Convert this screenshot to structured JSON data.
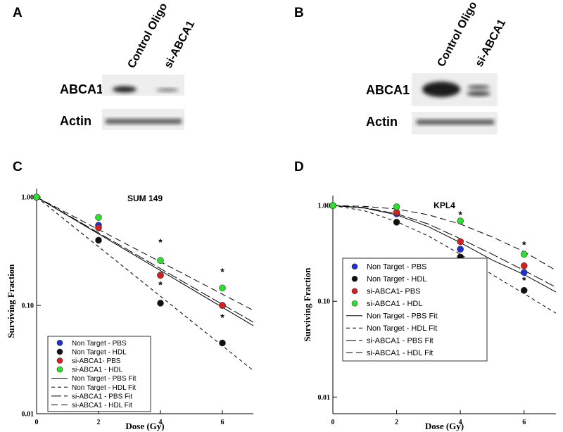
{
  "panels": {
    "A": {
      "label": "A",
      "lanes": [
        "Control Oligo",
        "si-ABCA1"
      ],
      "rows": [
        "ABCA1",
        "Actin"
      ]
    },
    "B": {
      "label": "B",
      "lanes": [
        "Control Oligo",
        "si-ABCA1"
      ],
      "rows": [
        "ABCA1",
        "Actin"
      ]
    },
    "C": {
      "label": "C"
    },
    "D": {
      "label": "D"
    }
  },
  "chart_data": [
    {
      "type": "scatter",
      "title": "SUM 149",
      "xlabel": "Dose (Gy)",
      "ylabel": "Surviving Fraction",
      "log_y": true,
      "legend": "lower left",
      "xlim": [
        0,
        7
      ],
      "xticks": [
        0,
        2,
        4,
        6
      ],
      "ylim": [
        0.01,
        1.2
      ],
      "yticks": [
        {
          "value": 1,
          "label": "1.00"
        },
        {
          "value": 0.1,
          "label": "0.10"
        },
        {
          "value": 0.01,
          "label": "0.01"
        }
      ],
      "series": [
        {
          "name": "Non Target - PBS",
          "color": "#1f2fd0",
          "x": [
            0,
            2,
            4,
            6
          ],
          "values": [
            1,
            0.55,
            0.19,
            0.1
          ]
        },
        {
          "name": "Non Target - HDL",
          "color": "#111111",
          "x": [
            0,
            2,
            4,
            6
          ],
          "values": [
            1,
            0.4,
            0.105,
            0.045
          ]
        },
        {
          "name": "si-ABCA1- PBS",
          "color": "#d42020",
          "x": [
            0,
            2,
            4,
            6
          ],
          "values": [
            1,
            0.52,
            0.19,
            0.1
          ]
        },
        {
          "name": "si-ABCA1 - HDL",
          "color": "#2ee02e",
          "x": [
            0,
            2,
            4,
            6
          ],
          "values": [
            1,
            0.65,
            0.26,
            0.145
          ]
        },
        {
          "name": "Non Target - PBS Fit",
          "color": "#000000",
          "line": "solid",
          "x": [
            0,
            7
          ],
          "values": [
            1,
            0.065
          ]
        },
        {
          "name": "Non Target - HDL Fit",
          "color": "#000000",
          "line": "dashed",
          "x": [
            0,
            7
          ],
          "values": [
            1,
            0.025
          ]
        },
        {
          "name": "si-ABCA1 - PBS Fit",
          "color": "#000000",
          "line": "long-dash",
          "x": [
            0,
            7
          ],
          "values": [
            1,
            0.07
          ]
        },
        {
          "name": "si-ABCA1 - HDL Fit",
          "color": "#000000",
          "line": "medium-dash",
          "x": [
            0,
            7
          ],
          "values": [
            1,
            0.09
          ]
        }
      ],
      "annotations": [
        {
          "text": "*",
          "x": 4,
          "y": 0.39
        },
        {
          "text": "*",
          "x": 4,
          "y": 0.158
        },
        {
          "text": "*",
          "x": 6,
          "y": 0.208
        },
        {
          "text": "*",
          "x": 6,
          "y": 0.079
        }
      ]
    },
    {
      "type": "scatter",
      "title": "KPL4",
      "xlabel": "Dose (Gy)",
      "ylabel": "Surviving Fraction",
      "log_y": true,
      "legend": "lower left",
      "xlim": [
        0,
        7
      ],
      "xticks": [
        0,
        2,
        4,
        6
      ],
      "ylim": [
        0.0067,
        1.27
      ],
      "yticks": [
        {
          "value": 1,
          "label": "1.00"
        },
        {
          "value": 0.1,
          "label": "0.10"
        },
        {
          "value": 0.01,
          "label": "0.01"
        }
      ],
      "series": [
        {
          "name": "Non Target - PBS",
          "color": "#1f2fd0",
          "x": [
            0,
            2,
            4,
            6
          ],
          "values": [
            1,
            0.82,
            0.35,
            0.2
          ]
        },
        {
          "name": "Non Target - HDL",
          "color": "#111111",
          "x": [
            0,
            2,
            4,
            6
          ],
          "values": [
            1,
            0.67,
            0.29,
            0.13
          ]
        },
        {
          "name": "si-ABCA1- PBS",
          "color": "#d42020",
          "x": [
            0,
            2,
            4,
            6
          ],
          "values": [
            1,
            0.85,
            0.42,
            0.235
          ]
        },
        {
          "name": "si-ABCA1 - HDL",
          "color": "#2ee02e",
          "x": [
            0,
            2,
            4,
            6
          ],
          "values": [
            1,
            0.97,
            0.69,
            0.31
          ]
        },
        {
          "name": "Non Target - PBS Fit",
          "color": "#000000",
          "line": "solid",
          "x": [
            0,
            1,
            2,
            3,
            4,
            5,
            6,
            7
          ],
          "values": [
            1,
            0.94,
            0.8,
            0.6,
            0.41,
            0.27,
            0.19,
            0.125
          ]
        },
        {
          "name": "Non Target - HDL Fit",
          "color": "#000000",
          "line": "dashed",
          "x": [
            0,
            1,
            2,
            3,
            4,
            5,
            6,
            7
          ],
          "values": [
            1,
            0.88,
            0.68,
            0.48,
            0.31,
            0.19,
            0.12,
            0.075
          ]
        },
        {
          "name": "si-ABCA1 - PBS Fit",
          "color": "#000000",
          "line": "long-dash",
          "x": [
            0,
            1,
            2,
            3,
            4,
            5,
            6,
            7
          ],
          "values": [
            1,
            0.95,
            0.82,
            0.64,
            0.45,
            0.31,
            0.21,
            0.14
          ]
        },
        {
          "name": "si-ABCA1 - HDL Fit",
          "color": "#000000",
          "line": "medium-dash",
          "x": [
            0,
            1,
            2,
            3,
            4,
            5,
            6,
            7
          ],
          "values": [
            1,
            0.98,
            0.92,
            0.8,
            0.64,
            0.47,
            0.33,
            0.21
          ]
        }
      ],
      "annotations": [
        {
          "text": "*",
          "x": 4,
          "y": 0.82
        },
        {
          "text": "*",
          "x": 6,
          "y": 0.4
        },
        {
          "text": "*",
          "x": 6,
          "y": 0.17
        }
      ]
    }
  ]
}
